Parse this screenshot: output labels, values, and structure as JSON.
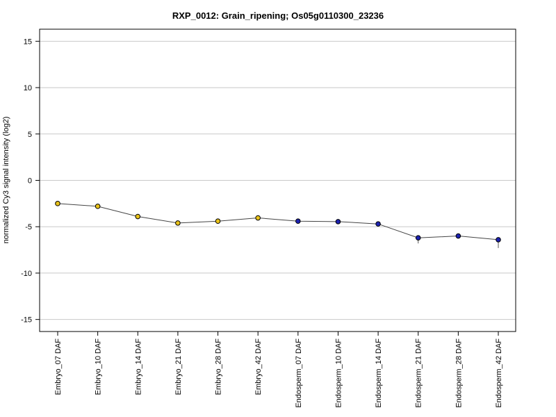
{
  "chart_data": {
    "type": "line",
    "title": "RXP_0012: Grain_ripening; Os05g0110300_23236",
    "xlabel": "",
    "ylabel": "normalized Cy3 signal intensity (log2)",
    "ylim": [
      -16.3,
      16.3
    ],
    "yticks": [
      15,
      10,
      5,
      0,
      -5,
      -10,
      -15
    ],
    "grid": true,
    "categories": [
      "Embryo_07 DAF",
      "Embryo_10 DAF",
      "Embryo_14 DAF",
      "Embryo_21 DAF",
      "Embryo_28 DAF",
      "Embryo_42 DAF",
      "Endosperm_07 DAF",
      "Endosperm_10 DAF",
      "Endosperm_14 DAF",
      "Endosperm_21 DAF",
      "Endosperm_28 DAF",
      "Endosperm_42 DAF"
    ],
    "values": [
      -2.5,
      -2.8,
      -3.9,
      -4.6,
      -4.4,
      -4.05,
      -4.4,
      -4.45,
      -4.7,
      -6.2,
      -6.0,
      -6.4
    ],
    "error_low": [
      0,
      0,
      0,
      0,
      0,
      0,
      0,
      0,
      0,
      0.6,
      0,
      0.9
    ],
    "error_high": [
      0,
      0,
      0,
      0,
      0,
      0,
      0,
      0,
      0,
      0,
      0,
      0
    ],
    "point_colors": [
      "#e8c21a",
      "#e8c21a",
      "#e8c21a",
      "#e8c21a",
      "#e8c21a",
      "#e8c21a",
      "#1c22b0",
      "#1c22b0",
      "#1c22b0",
      "#1c22b0",
      "#1c22b0",
      "#1c22b0"
    ],
    "line_color": "#444444",
    "grid_color": "#c8c8c8"
  }
}
